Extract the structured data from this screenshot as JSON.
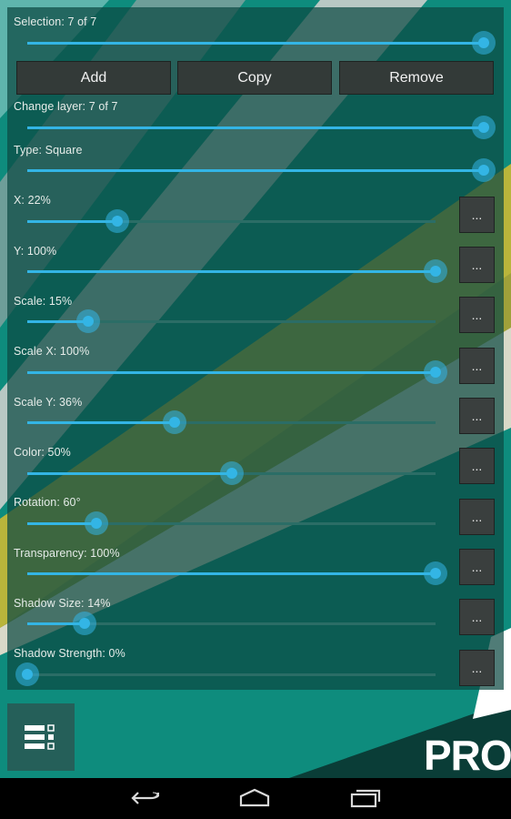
{
  "colors": {
    "accent": "#33b5e5",
    "panel": "#0d4a42",
    "background": "#0e8c7d",
    "button": "#333a38"
  },
  "sliders": {
    "selection": {
      "label": "Selection: 7 of 7",
      "value": 1.0
    },
    "change_layer": {
      "label": "Change layer: 7 of 7",
      "value": 1.0
    },
    "type": {
      "label": "Type: Square",
      "value": 1.0
    },
    "x": {
      "label": "X: 22%",
      "value": 0.22,
      "more": "..."
    },
    "y": {
      "label": "Y: 100%",
      "value": 1.0,
      "more": "..."
    },
    "scale": {
      "label": "Scale: 15%",
      "value": 0.15,
      "more": "..."
    },
    "scale_x": {
      "label": "Scale X: 100%",
      "value": 1.0,
      "more": "..."
    },
    "scale_y": {
      "label": "Scale Y: 36%",
      "value": 0.36,
      "more": "..."
    },
    "color": {
      "label": "Color: 50%",
      "value": 0.5,
      "more": "..."
    },
    "rotation": {
      "label": "Rotation: 60°",
      "value": 0.17,
      "more": "..."
    },
    "transparency": {
      "label": "Transparency: 100%",
      "value": 1.0,
      "more": "..."
    },
    "shadow_size": {
      "label": "Shadow Size: 14%",
      "value": 0.14,
      "more": "..."
    },
    "shadow_strength": {
      "label": "Shadow Strength: 0%",
      "value": 0.0,
      "more": "..."
    }
  },
  "actions": {
    "add": "Add",
    "copy": "Copy",
    "remove": "Remove"
  },
  "badge": "PRO",
  "icons": {
    "menu": "list-menu-icon",
    "back": "back-arrow-icon",
    "home": "home-icon",
    "recents": "recent-apps-icon"
  }
}
